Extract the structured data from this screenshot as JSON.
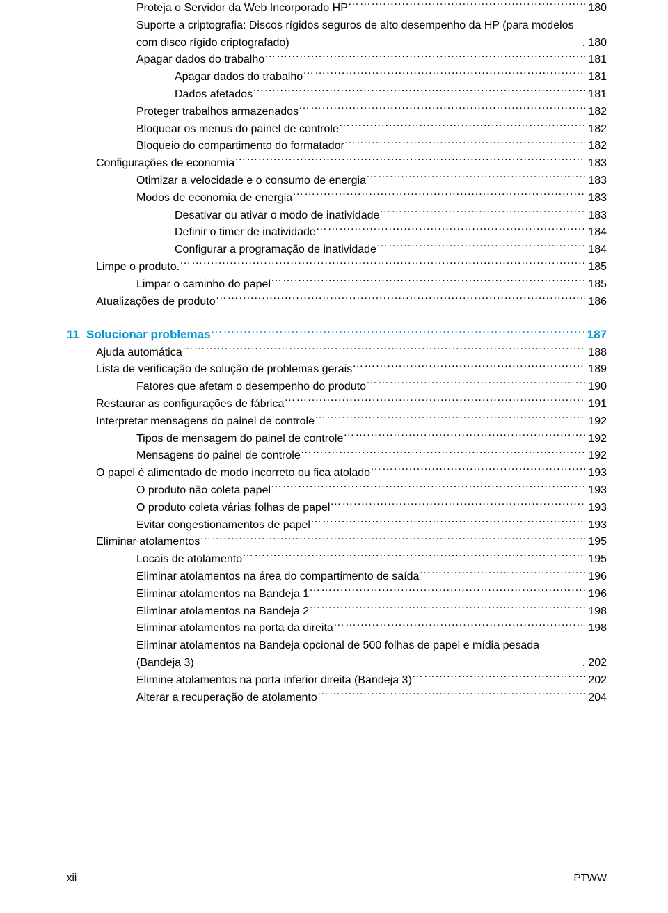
{
  "font": {
    "family": "Futura / sans-serif",
    "body_size_pt": 12,
    "chapter_size_pt": 13,
    "weight_body": 300,
    "weight_heading": 600
  },
  "colors": {
    "text": "#000000",
    "accent": "#0096d6",
    "leader": "#000000",
    "background": "#ffffff"
  },
  "block_a": [
    {
      "lvl": 3,
      "t": "Proteja o Servidor da Web Incorporado HP",
      "p": "180"
    },
    {
      "lvl": 3,
      "t": "Suporte a criptografia: Discos rígidos seguros de alto desempenho da HP (para modelos com disco rígido criptografado)",
      "p": "180",
      "wrap": true
    },
    {
      "lvl": 3,
      "t": "Apagar dados do trabalho",
      "p": "181"
    },
    {
      "lvl": 4,
      "t": "Apagar dados do trabalho",
      "p": "181"
    },
    {
      "lvl": 4,
      "t": "Dados afetados",
      "p": "181"
    },
    {
      "lvl": 3,
      "t": "Proteger trabalhos armazenados",
      "p": "182"
    },
    {
      "lvl": 3,
      "t": "Bloquear os menus do painel de controle",
      "p": "182"
    },
    {
      "lvl": 3,
      "t": "Bloqueio do compartimento do formatador",
      "p": "182"
    },
    {
      "lvl": 2,
      "t": "Configurações de economia",
      "p": "183"
    },
    {
      "lvl": 3,
      "t": "Otimizar a velocidade e o consumo de energia",
      "p": "183"
    },
    {
      "lvl": 3,
      "t": "Modos de economia de energia",
      "p": "183"
    },
    {
      "lvl": 4,
      "t": "Desativar ou ativar o modo de inatividade",
      "p": "183"
    },
    {
      "lvl": 4,
      "t": "Definir o timer de inatividade",
      "p": "184"
    },
    {
      "lvl": 4,
      "t": "Configurar a programação de inatividade",
      "p": "184"
    },
    {
      "lvl": 2,
      "t": "Limpe o produto.",
      "p": "185"
    },
    {
      "lvl": 3,
      "t": "Limpar o caminho do papel",
      "p": "185"
    },
    {
      "lvl": 2,
      "t": "Atualizações de produto",
      "p": "186"
    }
  ],
  "chapter": {
    "num": "11",
    "title": "Solucionar problemas",
    "page": "187"
  },
  "block_b": [
    {
      "lvl": 2,
      "t": "Ajuda automática",
      "p": "188"
    },
    {
      "lvl": 2,
      "t": "Lista de verificação de solução de problemas gerais",
      "p": "189"
    },
    {
      "lvl": 3,
      "t": "Fatores que afetam o desempenho do produto",
      "p": "190"
    },
    {
      "lvl": 2,
      "t": "Restaurar as configurações de fábrica",
      "p": "191"
    },
    {
      "lvl": 2,
      "t": "Interpretar mensagens do painel de controle",
      "p": "192"
    },
    {
      "lvl": 3,
      "t": "Tipos de mensagem do painel de controle",
      "p": "192"
    },
    {
      "lvl": 3,
      "t": "Mensagens do painel de controle",
      "p": "192"
    },
    {
      "lvl": 2,
      "t": "O papel é alimentado de modo incorreto ou fica atolado",
      "p": "193"
    },
    {
      "lvl": 3,
      "t": "O produto não coleta papel",
      "p": "193"
    },
    {
      "lvl": 3,
      "t": "O produto coleta várias folhas de papel",
      "p": "193"
    },
    {
      "lvl": 3,
      "t": "Evitar congestionamentos de papel",
      "p": "193"
    },
    {
      "lvl": 2,
      "t": "Eliminar atolamentos",
      "p": "195"
    },
    {
      "lvl": 3,
      "t": "Locais de atolamento",
      "p": "195"
    },
    {
      "lvl": 3,
      "t": "Eliminar atolamentos na área do compartimento de saída",
      "p": "196"
    },
    {
      "lvl": 3,
      "t": "Eliminar atolamentos na Bandeja 1",
      "p": "196"
    },
    {
      "lvl": 3,
      "t": "Eliminar atolamentos na Bandeja 2",
      "p": "198"
    },
    {
      "lvl": 3,
      "t": "Eliminar atolamentos na porta da direita",
      "p": "198"
    },
    {
      "lvl": 3,
      "t": "Eliminar atolamentos na Bandeja opcional de 500 folhas de papel e mídia pesada (Bandeja 3)",
      "p": "202",
      "wrap": true
    },
    {
      "lvl": 3,
      "t": "Elimine atolamentos na porta inferior direita (Bandeja 3)",
      "p": "202"
    },
    {
      "lvl": 3,
      "t": "Alterar a recuperação de atolamento",
      "p": "204"
    }
  ],
  "footer": {
    "left": "xii",
    "right": "PTWW"
  }
}
